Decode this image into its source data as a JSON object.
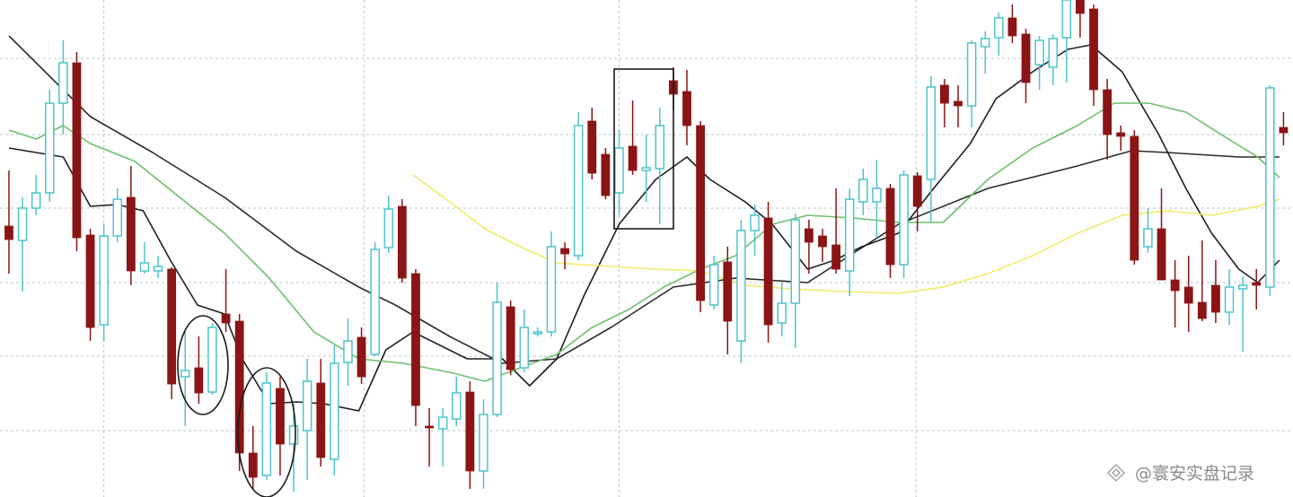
{
  "chart_data": {
    "type": "candlestick",
    "xlim": [
      -0.66,
      94.7
    ],
    "ylim": [
      0,
      554
    ],
    "xticks": [
      7,
      26.2,
      45,
      66.9
    ],
    "yticks": [
      489,
      404,
      322,
      239,
      157,
      74
    ],
    "grid": true,
    "up_color": "#4fc3cc",
    "down_color": "#8b1414",
    "open": [
      302,
      286,
      322,
      339,
      439,
      484,
      292,
      192,
      291,
      334,
      252,
      252,
      254,
      134,
      144,
      117,
      204,
      196,
      49,
      24,
      121,
      59,
      74,
      127,
      42,
      150,
      178,
      159,
      278,
      324,
      249,
      79,
      76,
      87,
      117,
      29,
      92,
      212,
      144,
      182,
      184,
      277,
      269,
      419,
      382,
      339,
      391,
      364,
      366,
      464,
      452,
      414,
      214,
      262,
      174,
      297,
      311,
      194,
      216,
      299,
      291,
      281,
      252,
      329,
      329,
      344,
      259,
      358,
      354,
      459,
      441,
      436,
      502,
      512,
      534,
      516,
      482,
      479,
      512,
      554,
      544,
      454,
      406,
      402,
      279,
      299,
      242,
      234,
      217,
      236,
      206,
      232,
      239,
      234,
      412
    ],
    "high": [
      364,
      334,
      359,
      454,
      509,
      496,
      299,
      304,
      344,
      369,
      284,
      269,
      256,
      184,
      179,
      194,
      254,
      204,
      79,
      139,
      134,
      104,
      154,
      154,
      169,
      199,
      189,
      284,
      336,
      332,
      254,
      99,
      99,
      134,
      129,
      109,
      239,
      219,
      209,
      189,
      296,
      284,
      429,
      434,
      389,
      409,
      442,
      404,
      434,
      479,
      476,
      419,
      269,
      279,
      309,
      326,
      329,
      239,
      316,
      309,
      299,
      344,
      344,
      366,
      376,
      349,
      364,
      362,
      469,
      466,
      459,
      509,
      519,
      540,
      549,
      522,
      514,
      516,
      554,
      554,
      549,
      466,
      414,
      409,
      322,
      344,
      264,
      269,
      286,
      264,
      254,
      246,
      254,
      459,
      429
    ],
    "low": [
      249,
      229,
      314,
      329,
      404,
      274,
      174,
      174,
      284,
      236,
      249,
      244,
      109,
      79,
      104,
      114,
      184,
      29,
      9,
      19,
      24,
      6,
      19,
      34,
      24,
      124,
      126,
      157,
      272,
      239,
      79,
      34,
      34,
      79,
      9,
      9,
      89,
      136,
      139,
      179,
      179,
      254,
      264,
      354,
      332,
      314,
      359,
      329,
      304,
      431,
      392,
      206,
      209,
      159,
      149,
      269,
      172,
      179,
      166,
      249,
      262,
      249,
      224,
      314,
      289,
      244,
      244,
      296,
      306,
      412,
      412,
      412,
      472,
      492,
      506,
      439,
      454,
      459,
      462,
      512,
      436,
      376,
      386,
      259,
      272,
      242,
      189,
      184,
      196,
      194,
      192,
      162,
      209,
      224,
      392
    ],
    "close": [
      287,
      322,
      339,
      439,
      484,
      289,
      189,
      291,
      332,
      252,
      261,
      257,
      126,
      141,
      116,
      189,
      194,
      49,
      22,
      127,
      59,
      79,
      129,
      44,
      149,
      174,
      134,
      276,
      321,
      244,
      102,
      77,
      89,
      116,
      29,
      92,
      217,
      142,
      189,
      184,
      279,
      271,
      414,
      361,
      336,
      389,
      364,
      367,
      414,
      449,
      414,
      219,
      259,
      196,
      297,
      314,
      192,
      216,
      309,
      284,
      279,
      254,
      332,
      354,
      344,
      259,
      359,
      324,
      457,
      439,
      436,
      506,
      511,
      534,
      514,
      462,
      509,
      511,
      554,
      539,
      454,
      404,
      402,
      264,
      299,
      242,
      230,
      216,
      199,
      206,
      234,
      236,
      236,
      456,
      406
    ],
    "series": [
      {
        "color": "#2b2b2b",
        "x": [
          0,
          6,
          10.6,
          15.9,
          21.2,
          25.8,
          28.5,
          32.5,
          36.4,
          40.4,
          44.4,
          49,
          53.6,
          58.9,
          65.6,
          72.2,
          78.8,
          82.8,
          85.4,
          90.7,
          93.7
        ],
        "values": [
          514,
          424,
          384,
          334,
          274,
          234,
          214,
          179,
          149,
          154,
          189,
          234,
          244,
          239,
          304,
          344,
          369,
          386,
          384,
          379,
          379
        ]
      },
      {
        "color": "#1e1e24",
        "x": [
          0,
          2,
          4,
          6,
          8,
          9.9,
          11.9,
          13.9,
          15.9,
          17.2,
          19.2,
          21.2,
          23.2,
          25.8,
          27.8,
          29.8,
          31.8,
          33.8,
          36.4,
          38.4,
          40.4,
          42.4,
          45,
          47.7,
          50,
          51.7,
          54.3,
          56.3,
          58.9,
          60.9,
          62.9,
          65.6,
          68.2,
          70.9,
          72.8,
          75.5,
          78.1,
          79.8,
          82.1,
          84.8,
          86.8,
          88.7,
          90.7,
          92.1,
          93.7
        ],
        "values": [
          389,
          384,
          379,
          324,
          326,
          319,
          264,
          214,
          204,
          154,
          104,
          106,
          104,
          96,
          164,
          184,
          169,
          154,
          154,
          124,
          154,
          224,
          304,
          354,
          379,
          354,
          329,
          304,
          254,
          264,
          279,
          294,
          344,
          394,
          444,
          474,
          499,
          504,
          474,
          404,
          344,
          294,
          254,
          239,
          264
        ]
      },
      {
        "color": "#6cc06a",
        "x": [
          0,
          2,
          4,
          6,
          9.3,
          12.6,
          15.9,
          19.2,
          22.5,
          25.8,
          29.1,
          32.5,
          35.1,
          37.7,
          40.4,
          43,
          45.7,
          48.3,
          51,
          53.6,
          56.3,
          58.9,
          62.3,
          65.6,
          68.9,
          72.2,
          75.5,
          78.8,
          81.5,
          84.1,
          86.8,
          89.4,
          92.1,
          93.7
        ],
        "values": [
          409,
          399,
          414,
          394,
          374,
          334,
          294,
          244,
          184,
          154,
          149,
          139,
          129,
          144,
          159,
          189,
          209,
          234,
          254,
          269,
          304,
          314,
          311,
          306,
          306,
          354,
          389,
          414,
          439,
          439,
          429,
          404,
          379,
          356
        ]
      },
      {
        "color": "#f2ea6a",
        "x": [
          29.8,
          32.5,
          35.1,
          37.7,
          40.4,
          44.4,
          47.7,
          51,
          54.3,
          57.6,
          61.6,
          65.6,
          68.9,
          72.2,
          75.5,
          78.8,
          82.1,
          85.4,
          88.7,
          92.1,
          93.7
        ],
        "values": [
          359,
          329,
          299,
          279,
          261,
          257,
          254,
          252,
          236,
          232,
          229,
          227,
          234,
          249,
          269,
          294,
          314,
          319,
          314,
          324,
          332
        ]
      }
    ]
  },
  "watermark": "@寰安实盘记录"
}
